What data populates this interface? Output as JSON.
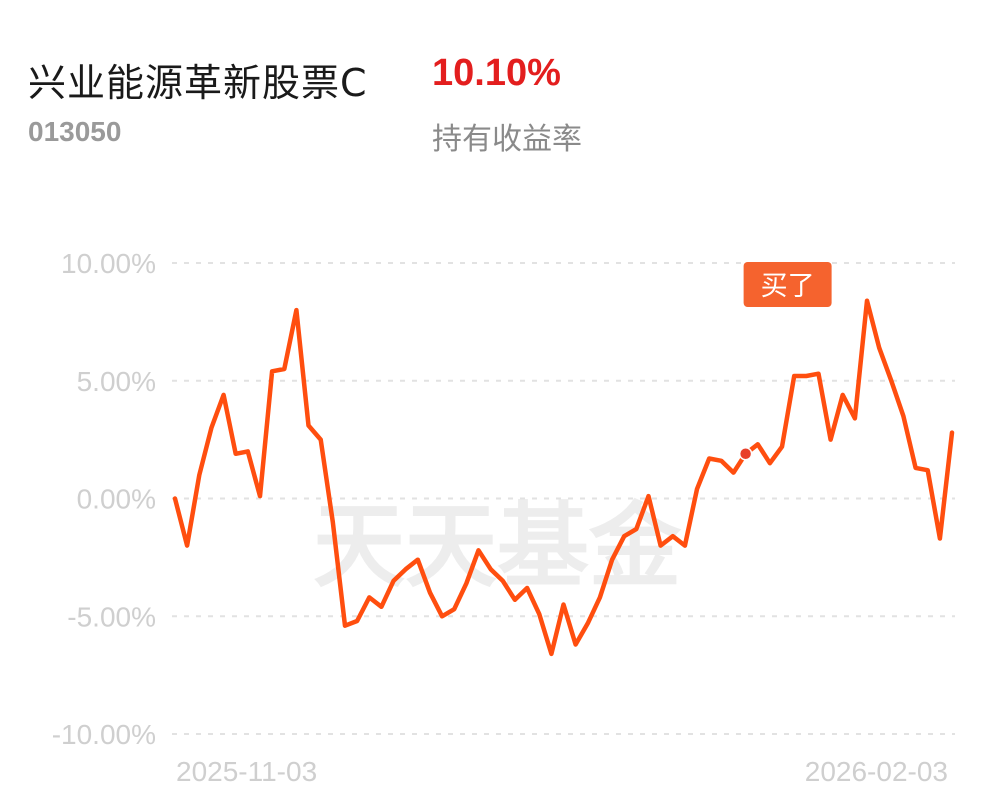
{
  "header": {
    "fund_name": "兴业能源革新股票C",
    "return_value": "10.10%",
    "fund_code": "013050",
    "return_label": "持有收益率"
  },
  "colors": {
    "line": "#ff4e0f",
    "return": "#e31e1e",
    "buy_marker": "#f5632e"
  },
  "watermark": "天天基金",
  "buy_marker": {
    "label": "买了",
    "index": 47
  },
  "chart_data": {
    "type": "line",
    "ylim": [
      -10,
      10
    ],
    "yticks": [
      10,
      5,
      0,
      -5,
      -10
    ],
    "ytick_labels": [
      "10.00%",
      "5.00%",
      "0.00%",
      "-5.00%",
      "-10.00%"
    ],
    "xtick_labels": [
      "2025-11-03",
      "2026-02-03"
    ],
    "grid": true,
    "series": [
      {
        "values": [
          0.0,
          -2.0,
          1.0,
          3.0,
          4.4,
          1.9,
          2.0,
          0.1,
          5.4,
          5.5,
          8.0,
          3.1,
          2.5,
          -1.0,
          -5.4,
          -5.2,
          -4.2,
          -4.6,
          -3.5,
          -3.0,
          -2.6,
          -4.0,
          -5.0,
          -4.7,
          -3.6,
          -2.2,
          -3.0,
          -3.5,
          -4.3,
          -3.8,
          -4.9,
          -6.6,
          -4.5,
          -6.2,
          -5.3,
          -4.2,
          -2.6,
          -1.6,
          -1.3,
          0.1,
          -2.0,
          -1.6,
          -2.0,
          0.4,
          1.7,
          1.6,
          1.1,
          1.9,
          2.3,
          1.5,
          2.2,
          5.2,
          5.2,
          5.3,
          2.5,
          4.4,
          3.4,
          8.4,
          6.4,
          5.0,
          3.5,
          1.3,
          1.2,
          -1.7,
          2.8
        ]
      }
    ]
  }
}
